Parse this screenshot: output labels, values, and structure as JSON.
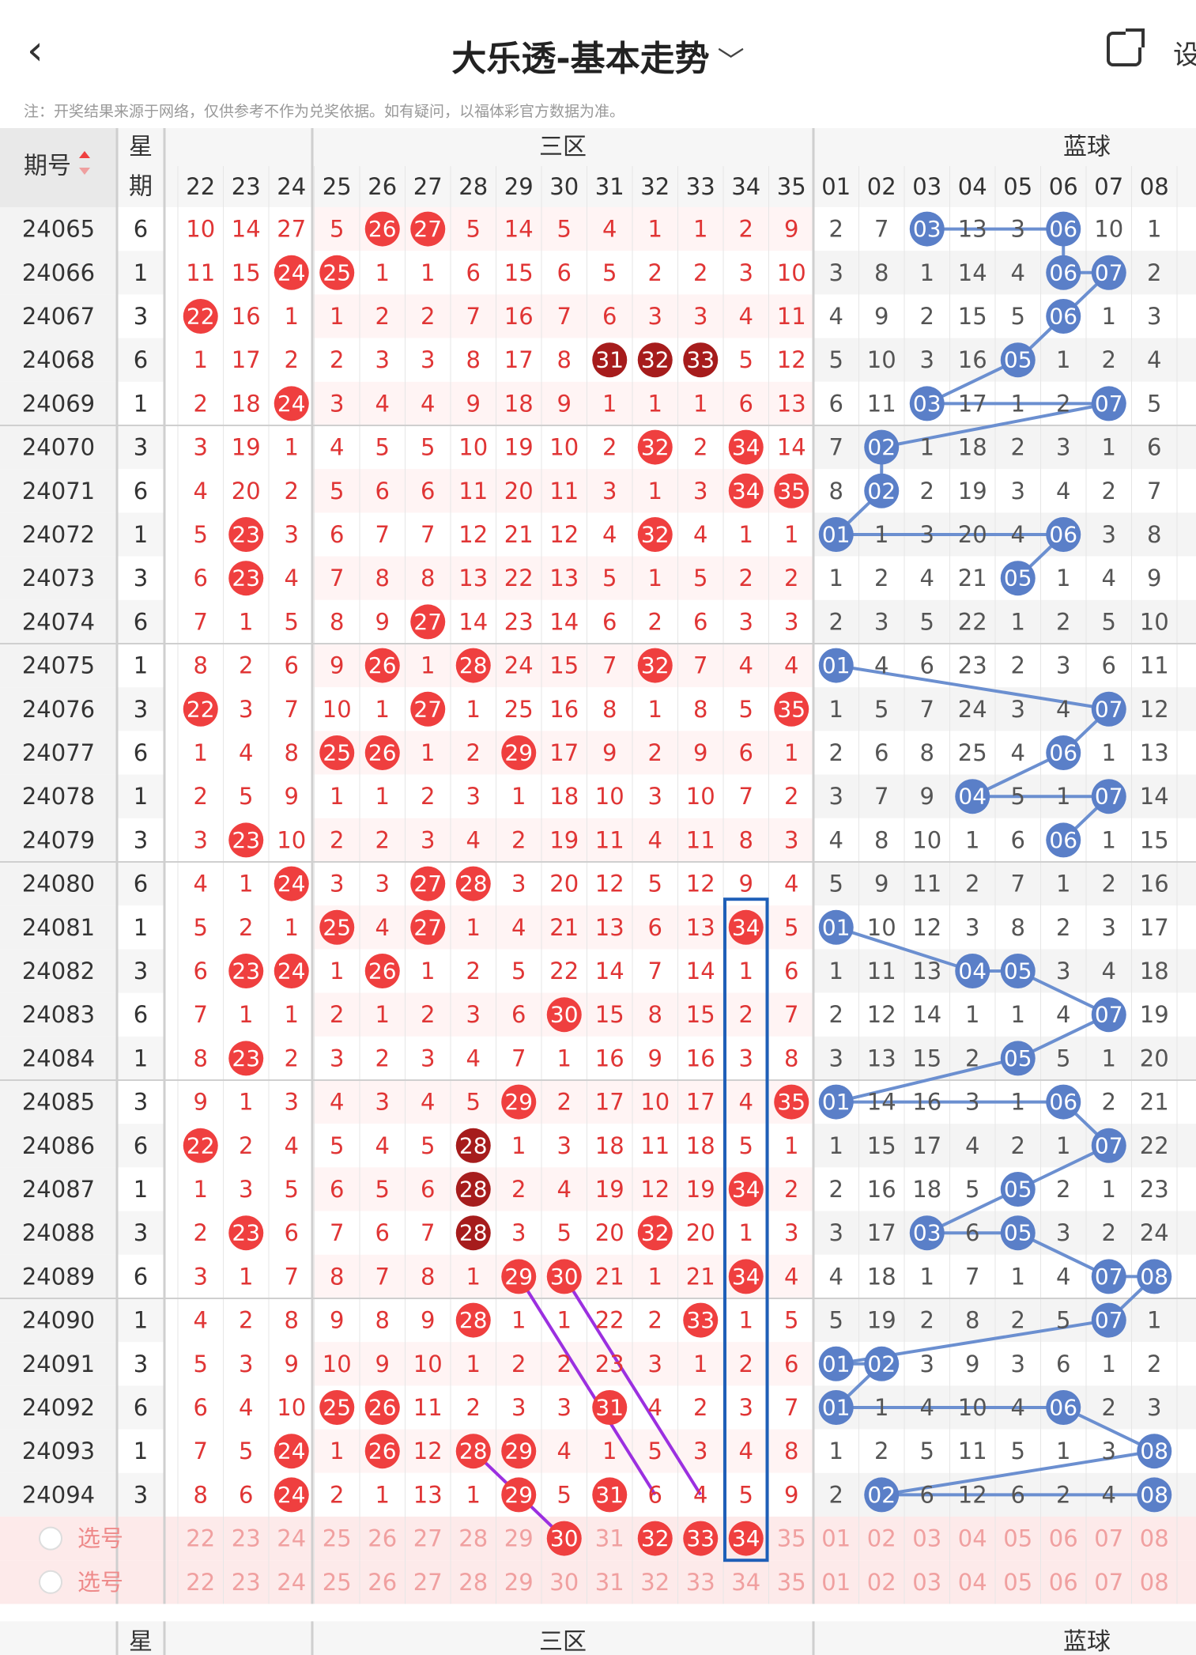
{
  "nav": {
    "back_icon": "chevron-left-icon",
    "title": "大乐透-基本走势",
    "share_icon": "share-external-icon",
    "setting_label": "设"
  },
  "notice": "注：开奖结果来源于网络，仅供参考不作为兑奖依据。如有疑问，以福体彩官方数据为准。",
  "header": {
    "period_label": "期号",
    "week_label_1": "星",
    "week_label_2": "期",
    "zone_label": "三区",
    "blue_label": "蓝球"
  },
  "front_cols": [
    "22",
    "23",
    "24",
    "25",
    "26",
    "27",
    "28",
    "29",
    "30",
    "31",
    "32",
    "33",
    "34",
    "35"
  ],
  "blue_cols": [
    "01",
    "02",
    "03",
    "04",
    "05",
    "06",
    "07",
    "08"
  ],
  "select_label": "选号",
  "footer": {
    "dash": "-",
    "week_label": "星",
    "week_label_2": "期",
    "zone_label": "三区",
    "blue_label": "蓝球"
  },
  "colors": {
    "red": "#ef3f3f",
    "dark_red": "#a61c1c",
    "blue": "#6b8fd0",
    "blue_dark": "#5a7fc8"
  },
  "rows": [
    {
      "p": "24065",
      "w": "6",
      "f": [
        "10",
        "14",
        "27",
        "5",
        "26",
        "27",
        "5",
        "14",
        "5",
        "4",
        "1",
        "1",
        "2",
        "9"
      ],
      "b": [
        "2",
        "7",
        "03",
        "13",
        "3",
        "06",
        "10",
        "1"
      ]
    },
    {
      "p": "24066",
      "w": "1",
      "f": [
        "11",
        "15",
        "24",
        "25",
        "1",
        "1",
        "6",
        "15",
        "6",
        "5",
        "2",
        "2",
        "3",
        "10"
      ],
      "b": [
        "3",
        "8",
        "1",
        "14",
        "4",
        "06",
        "07",
        "2"
      ]
    },
    {
      "p": "24067",
      "w": "3",
      "f": [
        "22",
        "16",
        "1",
        "1",
        "2",
        "2",
        "7",
        "16",
        "7",
        "6",
        "3",
        "3",
        "4",
        "11"
      ],
      "b": [
        "4",
        "9",
        "2",
        "15",
        "5",
        "06",
        "1",
        "3"
      ]
    },
    {
      "p": "24068",
      "w": "6",
      "f": [
        "1",
        "17",
        "2",
        "2",
        "3",
        "3",
        "8",
        "17",
        "8",
        "31",
        "32",
        "33",
        "5",
        "12"
      ],
      "b": [
        "5",
        "10",
        "3",
        "16",
        "05",
        "1",
        "2",
        "4"
      ]
    },
    {
      "p": "24069",
      "w": "1",
      "f": [
        "2",
        "18",
        "24",
        "3",
        "4",
        "4",
        "9",
        "18",
        "9",
        "1",
        "1",
        "1",
        "6",
        "13"
      ],
      "b": [
        "6",
        "11",
        "03",
        "17",
        "1",
        "2",
        "07",
        "5"
      ]
    },
    {
      "p": "24070",
      "w": "3",
      "f": [
        "3",
        "19",
        "1",
        "4",
        "5",
        "5",
        "10",
        "19",
        "10",
        "2",
        "32",
        "2",
        "34",
        "14"
      ],
      "b": [
        "7",
        "02",
        "1",
        "18",
        "2",
        "3",
        "1",
        "6"
      ]
    },
    {
      "p": "24071",
      "w": "6",
      "f": [
        "4",
        "20",
        "2",
        "5",
        "6",
        "6",
        "11",
        "20",
        "11",
        "3",
        "1",
        "3",
        "34",
        "35"
      ],
      "b": [
        "8",
        "02",
        "2",
        "19",
        "3",
        "4",
        "2",
        "7"
      ]
    },
    {
      "p": "24072",
      "w": "1",
      "f": [
        "5",
        "23",
        "3",
        "6",
        "7",
        "7",
        "12",
        "21",
        "12",
        "4",
        "32",
        "4",
        "1",
        "1"
      ],
      "b": [
        "01",
        "1",
        "3",
        "20",
        "4",
        "06",
        "3",
        "8"
      ]
    },
    {
      "p": "24073",
      "w": "3",
      "f": [
        "6",
        "23",
        "4",
        "7",
        "8",
        "8",
        "13",
        "22",
        "13",
        "5",
        "1",
        "5",
        "2",
        "2"
      ],
      "b": [
        "1",
        "2",
        "4",
        "21",
        "05",
        "1",
        "4",
        "9"
      ]
    },
    {
      "p": "24074",
      "w": "6",
      "f": [
        "7",
        "1",
        "5",
        "8",
        "9",
        "27",
        "14",
        "23",
        "14",
        "6",
        "2",
        "6",
        "3",
        "3"
      ],
      "b": [
        "2",
        "3",
        "5",
        "22",
        "1",
        "2",
        "5",
        "10"
      ]
    },
    {
      "p": "24075",
      "w": "1",
      "f": [
        "8",
        "2",
        "6",
        "9",
        "26",
        "1",
        "28",
        "24",
        "15",
        "7",
        "32",
        "7",
        "4",
        "4"
      ],
      "b": [
        "01",
        "4",
        "6",
        "23",
        "2",
        "3",
        "6",
        "11"
      ]
    },
    {
      "p": "24076",
      "w": "3",
      "f": [
        "22",
        "3",
        "7",
        "10",
        "1",
        "27",
        "1",
        "25",
        "16",
        "8",
        "1",
        "8",
        "5",
        "35"
      ],
      "b": [
        "1",
        "5",
        "7",
        "24",
        "3",
        "4",
        "07",
        "12"
      ]
    },
    {
      "p": "24077",
      "w": "6",
      "f": [
        "1",
        "4",
        "8",
        "25",
        "26",
        "1",
        "2",
        "29",
        "17",
        "9",
        "2",
        "9",
        "6",
        "1"
      ],
      "b": [
        "2",
        "6",
        "8",
        "25",
        "4",
        "06",
        "1",
        "13"
      ]
    },
    {
      "p": "24078",
      "w": "1",
      "f": [
        "2",
        "5",
        "9",
        "1",
        "1",
        "2",
        "3",
        "1",
        "18",
        "10",
        "3",
        "10",
        "7",
        "2"
      ],
      "b": [
        "3",
        "7",
        "9",
        "04",
        "5",
        "1",
        "07",
        "14"
      ]
    },
    {
      "p": "24079",
      "w": "3",
      "f": [
        "3",
        "23",
        "10",
        "2",
        "2",
        "3",
        "4",
        "2",
        "19",
        "11",
        "4",
        "11",
        "8",
        "3"
      ],
      "b": [
        "4",
        "8",
        "10",
        "1",
        "6",
        "06",
        "1",
        "15"
      ]
    },
    {
      "p": "24080",
      "w": "6",
      "f": [
        "4",
        "1",
        "24",
        "3",
        "3",
        "27",
        "28",
        "3",
        "20",
        "12",
        "5",
        "12",
        "9",
        "4"
      ],
      "b": [
        "5",
        "9",
        "11",
        "2",
        "7",
        "1",
        "2",
        "16"
      ]
    },
    {
      "p": "24081",
      "w": "1",
      "f": [
        "5",
        "2",
        "1",
        "25",
        "4",
        "27",
        "1",
        "4",
        "21",
        "13",
        "6",
        "13",
        "34",
        "5"
      ],
      "b": [
        "01",
        "10",
        "12",
        "3",
        "8",
        "2",
        "3",
        "17"
      ]
    },
    {
      "p": "24082",
      "w": "3",
      "f": [
        "6",
        "23",
        "24",
        "1",
        "26",
        "1",
        "2",
        "5",
        "22",
        "14",
        "7",
        "14",
        "1",
        "6"
      ],
      "b": [
        "1",
        "11",
        "13",
        "04",
        "05",
        "3",
        "4",
        "18"
      ]
    },
    {
      "p": "24083",
      "w": "6",
      "f": [
        "7",
        "1",
        "1",
        "2",
        "1",
        "2",
        "3",
        "6",
        "30",
        "15",
        "8",
        "15",
        "2",
        "7"
      ],
      "b": [
        "2",
        "12",
        "14",
        "1",
        "1",
        "4",
        "07",
        "19"
      ]
    },
    {
      "p": "24084",
      "w": "1",
      "f": [
        "8",
        "23",
        "2",
        "3",
        "2",
        "3",
        "4",
        "7",
        "1",
        "16",
        "9",
        "16",
        "3",
        "8"
      ],
      "b": [
        "3",
        "13",
        "15",
        "2",
        "05",
        "5",
        "1",
        "20"
      ]
    },
    {
      "p": "24085",
      "w": "3",
      "f": [
        "9",
        "1",
        "3",
        "4",
        "3",
        "4",
        "5",
        "29",
        "2",
        "17",
        "10",
        "17",
        "4",
        "35"
      ],
      "b": [
        "01",
        "14",
        "16",
        "3",
        "1",
        "06",
        "2",
        "21"
      ]
    },
    {
      "p": "24086",
      "w": "6",
      "f": [
        "22",
        "2",
        "4",
        "5",
        "4",
        "5",
        "28",
        "1",
        "3",
        "18",
        "11",
        "18",
        "5",
        "1"
      ],
      "b": [
        "1",
        "15",
        "17",
        "4",
        "2",
        "1",
        "07",
        "22"
      ]
    },
    {
      "p": "24087",
      "w": "1",
      "f": [
        "1",
        "3",
        "5",
        "6",
        "5",
        "6",
        "28",
        "2",
        "4",
        "19",
        "12",
        "19",
        "34",
        "2"
      ],
      "b": [
        "2",
        "16",
        "18",
        "5",
        "05",
        "2",
        "1",
        "23"
      ]
    },
    {
      "p": "24088",
      "w": "3",
      "f": [
        "2",
        "23",
        "6",
        "7",
        "6",
        "7",
        "28",
        "3",
        "5",
        "20",
        "32",
        "20",
        "1",
        "3"
      ],
      "b": [
        "3",
        "17",
        "03",
        "6",
        "05",
        "3",
        "2",
        "24"
      ]
    },
    {
      "p": "24089",
      "w": "6",
      "f": [
        "3",
        "1",
        "7",
        "8",
        "7",
        "8",
        "1",
        "29",
        "30",
        "21",
        "1",
        "21",
        "34",
        "4"
      ],
      "b": [
        "4",
        "18",
        "1",
        "7",
        "1",
        "4",
        "07",
        "08"
      ]
    },
    {
      "p": "24090",
      "w": "1",
      "f": [
        "4",
        "2",
        "8",
        "9",
        "8",
        "9",
        "28",
        "1",
        "1",
        "22",
        "2",
        "33",
        "1",
        "5"
      ],
      "b": [
        "5",
        "19",
        "2",
        "8",
        "2",
        "5",
        "07",
        "1"
      ]
    },
    {
      "p": "24091",
      "w": "3",
      "f": [
        "5",
        "3",
        "9",
        "10",
        "9",
        "10",
        "1",
        "2",
        "2",
        "23",
        "3",
        "1",
        "2",
        "6"
      ],
      "b": [
        "01",
        "02",
        "3",
        "9",
        "3",
        "6",
        "1",
        "2"
      ]
    },
    {
      "p": "24092",
      "w": "6",
      "f": [
        "6",
        "4",
        "10",
        "25",
        "26",
        "11",
        "2",
        "3",
        "3",
        "31",
        "4",
        "2",
        "3",
        "7"
      ],
      "b": [
        "01",
        "1",
        "4",
        "10",
        "4",
        "06",
        "2",
        "3"
      ]
    },
    {
      "p": "24093",
      "w": "1",
      "f": [
        "7",
        "5",
        "24",
        "1",
        "26",
        "12",
        "28",
        "29",
        "4",
        "1",
        "5",
        "3",
        "4",
        "8"
      ],
      "b": [
        "1",
        "2",
        "5",
        "11",
        "5",
        "1",
        "3",
        "08"
      ]
    },
    {
      "p": "24094",
      "w": "3",
      "f": [
        "8",
        "6",
        "24",
        "2",
        "1",
        "13",
        "1",
        "29",
        "5",
        "31",
        "6",
        "4",
        "5",
        "9"
      ],
      "b": [
        "2",
        "02",
        "6",
        "12",
        "6",
        "2",
        "4",
        "08"
      ]
    }
  ]
}
